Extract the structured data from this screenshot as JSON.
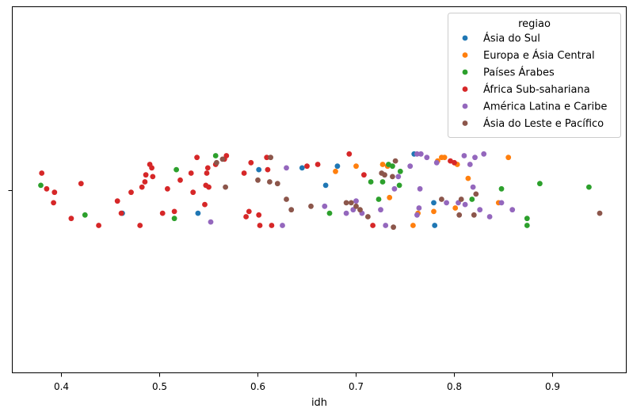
{
  "chart_data": {
    "type": "scatter",
    "xlabel": "idh",
    "ylabel": "",
    "xlim": [
      0.35,
      0.975
    ],
    "xticks": [
      "0.4",
      "0.5",
      "0.6",
      "0.7",
      "0.8",
      "0.9"
    ],
    "grid": false,
    "legend": {
      "title": "regiao",
      "placement": "top-right"
    },
    "series": [
      {
        "name": "Ásia do Sul",
        "color": "#1f77b4",
        "values": [
          {
            "x": 0.462,
            "y": -0.13
          },
          {
            "x": 0.539,
            "y": -0.13
          },
          {
            "x": 0.601,
            "y": 0.12
          },
          {
            "x": 0.645,
            "y": 0.13
          },
          {
            "x": 0.669,
            "y": 0.03
          },
          {
            "x": 0.681,
            "y": 0.14
          },
          {
            "x": 0.759,
            "y": 0.21
          },
          {
            "x": 0.779,
            "y": -0.07
          },
          {
            "x": 0.78,
            "y": -0.2
          }
        ]
      },
      {
        "name": "Europa e Ásia Central",
        "color": "#ff7f0e",
        "values": [
          {
            "x": 0.679,
            "y": 0.11
          },
          {
            "x": 0.7,
            "y": 0.14
          },
          {
            "x": 0.727,
            "y": 0.15
          },
          {
            "x": 0.732,
            "y": 0.14
          },
          {
            "x": 0.734,
            "y": -0.04
          },
          {
            "x": 0.758,
            "y": -0.2
          },
          {
            "x": 0.763,
            "y": -0.13
          },
          {
            "x": 0.779,
            "y": -0.12
          },
          {
            "x": 0.783,
            "y": 0.17
          },
          {
            "x": 0.787,
            "y": 0.19
          },
          {
            "x": 0.79,
            "y": 0.19
          },
          {
            "x": 0.801,
            "y": -0.1
          },
          {
            "x": 0.803,
            "y": 0.15
          },
          {
            "x": 0.814,
            "y": 0.07
          },
          {
            "x": 0.845,
            "y": -0.07
          },
          {
            "x": 0.855,
            "y": 0.19
          }
        ]
      },
      {
        "name": "Países Árabes",
        "color": "#2ca02c",
        "values": [
          {
            "x": 0.379,
            "y": 0.03
          },
          {
            "x": 0.424,
            "y": -0.14
          },
          {
            "x": 0.515,
            "y": -0.16
          },
          {
            "x": 0.517,
            "y": 0.12
          },
          {
            "x": 0.557,
            "y": 0.2
          },
          {
            "x": 0.673,
            "y": -0.13
          },
          {
            "x": 0.715,
            "y": 0.05
          },
          {
            "x": 0.723,
            "y": -0.05
          },
          {
            "x": 0.727,
            "y": 0.05
          },
          {
            "x": 0.733,
            "y": 0.15
          },
          {
            "x": 0.737,
            "y": 0.14
          },
          {
            "x": 0.744,
            "y": 0.03
          },
          {
            "x": 0.745,
            "y": 0.11
          },
          {
            "x": 0.818,
            "y": -0.05
          },
          {
            "x": 0.848,
            "y": 0.01
          },
          {
            "x": 0.874,
            "y": -0.16
          },
          {
            "x": 0.874,
            "y": -0.2
          },
          {
            "x": 0.887,
            "y": 0.04
          },
          {
            "x": 0.937,
            "y": 0.02
          }
        ]
      },
      {
        "name": "África Sub-sahariana",
        "color": "#d62728",
        "values": [
          {
            "x": 0.38,
            "y": 0.1
          },
          {
            "x": 0.385,
            "y": 0.01
          },
          {
            "x": 0.392,
            "y": -0.07
          },
          {
            "x": 0.393,
            "y": -0.01
          },
          {
            "x": 0.41,
            "y": -0.16
          },
          {
            "x": 0.42,
            "y": 0.04
          },
          {
            "x": 0.438,
            "y": -0.2
          },
          {
            "x": 0.457,
            "y": -0.06
          },
          {
            "x": 0.461,
            "y": -0.13
          },
          {
            "x": 0.471,
            "y": -0.01
          },
          {
            "x": 0.48,
            "y": -0.2
          },
          {
            "x": 0.482,
            "y": 0.02
          },
          {
            "x": 0.485,
            "y": 0.05
          },
          {
            "x": 0.486,
            "y": 0.09
          },
          {
            "x": 0.49,
            "y": 0.15
          },
          {
            "x": 0.492,
            "y": 0.13
          },
          {
            "x": 0.493,
            "y": 0.08
          },
          {
            "x": 0.503,
            "y": -0.13
          },
          {
            "x": 0.508,
            "y": 0.01
          },
          {
            "x": 0.515,
            "y": -0.12
          },
          {
            "x": 0.521,
            "y": 0.06
          },
          {
            "x": 0.532,
            "y": 0.1
          },
          {
            "x": 0.534,
            "y": -0.01
          },
          {
            "x": 0.538,
            "y": 0.19
          },
          {
            "x": 0.546,
            "y": -0.08
          },
          {
            "x": 0.547,
            "y": 0.03
          },
          {
            "x": 0.548,
            "y": 0.1
          },
          {
            "x": 0.549,
            "y": 0.13
          },
          {
            "x": 0.55,
            "y": 0.02
          },
          {
            "x": 0.557,
            "y": 0.15
          },
          {
            "x": 0.566,
            "y": 0.18
          },
          {
            "x": 0.568,
            "y": 0.2
          },
          {
            "x": 0.586,
            "y": 0.1
          },
          {
            "x": 0.588,
            "y": -0.15
          },
          {
            "x": 0.591,
            "y": -0.12
          },
          {
            "x": 0.593,
            "y": 0.16
          },
          {
            "x": 0.601,
            "y": -0.14
          },
          {
            "x": 0.602,
            "y": -0.2
          },
          {
            "x": 0.609,
            "y": 0.19
          },
          {
            "x": 0.61,
            "y": 0.12
          },
          {
            "x": 0.614,
            "y": -0.2
          },
          {
            "x": 0.65,
            "y": 0.14
          },
          {
            "x": 0.661,
            "y": 0.15
          },
          {
            "x": 0.693,
            "y": 0.21
          },
          {
            "x": 0.708,
            "y": 0.09
          },
          {
            "x": 0.717,
            "y": -0.2
          },
          {
            "x": 0.796,
            "y": 0.17
          },
          {
            "x": 0.8,
            "y": 0.16
          }
        ]
      },
      {
        "name": "América Latina e Caribe",
        "color": "#9467bd",
        "values": [
          {
            "x": 0.552,
            "y": -0.18
          },
          {
            "x": 0.625,
            "y": -0.2
          },
          {
            "x": 0.629,
            "y": 0.13
          },
          {
            "x": 0.668,
            "y": -0.09
          },
          {
            "x": 0.69,
            "y": -0.13
          },
          {
            "x": 0.697,
            "y": -0.11
          },
          {
            "x": 0.7,
            "y": -0.06
          },
          {
            "x": 0.706,
            "y": -0.13
          },
          {
            "x": 0.725,
            "y": -0.11
          },
          {
            "x": 0.73,
            "y": -0.2
          },
          {
            "x": 0.739,
            "y": 0.01
          },
          {
            "x": 0.743,
            "y": 0.08
          },
          {
            "x": 0.755,
            "y": 0.14
          },
          {
            "x": 0.762,
            "y": 0.21
          },
          {
            "x": 0.762,
            "y": -0.14
          },
          {
            "x": 0.764,
            "y": -0.1
          },
          {
            "x": 0.765,
            "y": 0.01
          },
          {
            "x": 0.766,
            "y": 0.21
          },
          {
            "x": 0.772,
            "y": 0.19
          },
          {
            "x": 0.782,
            "y": 0.16
          },
          {
            "x": 0.792,
            "y": -0.07
          },
          {
            "x": 0.804,
            "y": -0.07
          },
          {
            "x": 0.81,
            "y": 0.2
          },
          {
            "x": 0.811,
            "y": -0.08
          },
          {
            "x": 0.816,
            "y": 0.15
          },
          {
            "x": 0.819,
            "y": 0.02
          },
          {
            "x": 0.821,
            "y": 0.19
          },
          {
            "x": 0.826,
            "y": -0.11
          },
          {
            "x": 0.83,
            "y": 0.21
          },
          {
            "x": 0.836,
            "y": -0.15
          },
          {
            "x": 0.848,
            "y": -0.07
          },
          {
            "x": 0.859,
            "y": -0.11
          }
        ]
      },
      {
        "name": "Ásia do Leste e Pacífico",
        "color": "#8c564b",
        "values": [
          {
            "x": 0.558,
            "y": 0.16
          },
          {
            "x": 0.564,
            "y": 0.18
          },
          {
            "x": 0.567,
            "y": 0.02
          },
          {
            "x": 0.6,
            "y": 0.06
          },
          {
            "x": 0.612,
            "y": 0.05
          },
          {
            "x": 0.613,
            "y": 0.19
          },
          {
            "x": 0.62,
            "y": 0.04
          },
          {
            "x": 0.629,
            "y": -0.05
          },
          {
            "x": 0.634,
            "y": -0.11
          },
          {
            "x": 0.654,
            "y": -0.09
          },
          {
            "x": 0.69,
            "y": -0.07
          },
          {
            "x": 0.695,
            "y": -0.07
          },
          {
            "x": 0.7,
            "y": -0.09
          },
          {
            "x": 0.704,
            "y": -0.11
          },
          {
            "x": 0.712,
            "y": -0.15
          },
          {
            "x": 0.726,
            "y": 0.1
          },
          {
            "x": 0.729,
            "y": 0.09
          },
          {
            "x": 0.737,
            "y": 0.08
          },
          {
            "x": 0.738,
            "y": -0.21
          },
          {
            "x": 0.74,
            "y": 0.17
          },
          {
            "x": 0.787,
            "y": -0.05
          },
          {
            "x": 0.805,
            "y": -0.14
          },
          {
            "x": 0.807,
            "y": -0.05
          },
          {
            "x": 0.82,
            "y": -0.14
          },
          {
            "x": 0.822,
            "y": -0.02
          },
          {
            "x": 0.948,
            "y": -0.13
          }
        ]
      }
    ]
  }
}
